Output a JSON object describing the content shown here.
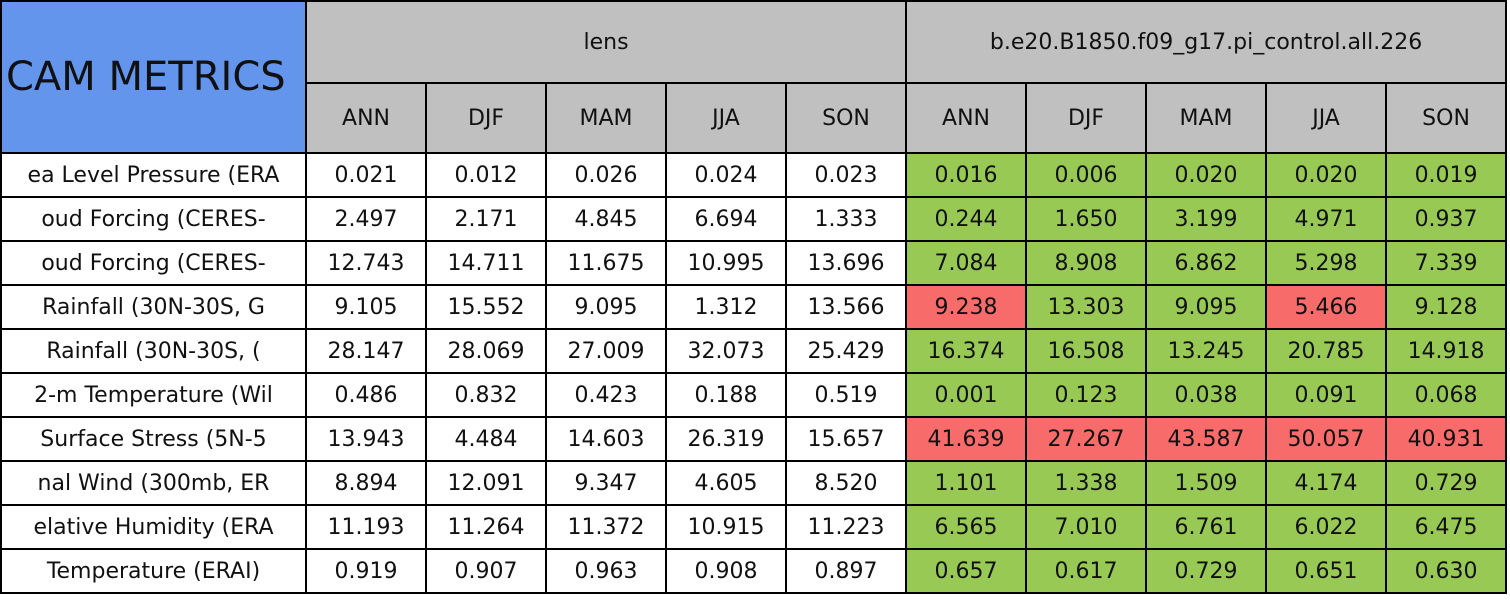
{
  "table": {
    "corner": "CAM METRICS",
    "groups": [
      "lens",
      "b.e20.B1850.f09_g17.pi_control.all.226"
    ],
    "seasons": [
      "ANN",
      "DJF",
      "MAM",
      "JJA",
      "SON"
    ],
    "colors": {
      "good": "#99c955",
      "bad": "#f86b6b"
    },
    "rows": [
      {
        "label": "ea Level Pressure (ERA",
        "lens": [
          "0.021",
          "0.012",
          "0.026",
          "0.024",
          "0.023"
        ],
        "control": [
          "0.016",
          "0.006",
          "0.020",
          "0.020",
          "0.019"
        ],
        "control_colors": [
          "good",
          "good",
          "good",
          "good",
          "good"
        ]
      },
      {
        "label": "oud Forcing (CERES-",
        "lens": [
          "2.497",
          "2.171",
          "4.845",
          "6.694",
          "1.333"
        ],
        "control": [
          "0.244",
          "1.650",
          "3.199",
          "4.971",
          "0.937"
        ],
        "control_colors": [
          "good",
          "good",
          "good",
          "good",
          "good"
        ]
      },
      {
        "label": "oud Forcing (CERES-",
        "lens": [
          "12.743",
          "14.711",
          "11.675",
          "10.995",
          "13.696"
        ],
        "control": [
          "7.084",
          "8.908",
          "6.862",
          "5.298",
          "7.339"
        ],
        "control_colors": [
          "good",
          "good",
          "good",
          "good",
          "good"
        ]
      },
      {
        "label": "Rainfall (30N-30S, G",
        "lens": [
          "9.105",
          "15.552",
          "9.095",
          "1.312",
          "13.566"
        ],
        "control": [
          "9.238",
          "13.303",
          "9.095",
          "5.466",
          "9.128"
        ],
        "control_colors": [
          "bad",
          "good",
          "good",
          "bad",
          "good"
        ]
      },
      {
        "label": "Rainfall (30N-30S, (",
        "lens": [
          "28.147",
          "28.069",
          "27.009",
          "32.073",
          "25.429"
        ],
        "control": [
          "16.374",
          "16.508",
          "13.245",
          "20.785",
          "14.918"
        ],
        "control_colors": [
          "good",
          "good",
          "good",
          "good",
          "good"
        ]
      },
      {
        "label": "2-m Temperature (Wil",
        "lens": [
          "0.486",
          "0.832",
          "0.423",
          "0.188",
          "0.519"
        ],
        "control": [
          "0.001",
          "0.123",
          "0.038",
          "0.091",
          "0.068"
        ],
        "control_colors": [
          "good",
          "good",
          "good",
          "good",
          "good"
        ]
      },
      {
        "label": "Surface Stress (5N-5",
        "lens": [
          "13.943",
          "4.484",
          "14.603",
          "26.319",
          "15.657"
        ],
        "control": [
          "41.639",
          "27.267",
          "43.587",
          "50.057",
          "40.931"
        ],
        "control_colors": [
          "bad",
          "bad",
          "bad",
          "bad",
          "bad"
        ]
      },
      {
        "label": "nal Wind (300mb, ER",
        "lens": [
          "8.894",
          "12.091",
          "9.347",
          "4.605",
          "8.520"
        ],
        "control": [
          "1.101",
          "1.338",
          "1.509",
          "4.174",
          "0.729"
        ],
        "control_colors": [
          "good",
          "good",
          "good",
          "good",
          "good"
        ]
      },
      {
        "label": "elative Humidity (ERA",
        "lens": [
          "11.193",
          "11.264",
          "11.372",
          "10.915",
          "11.223"
        ],
        "control": [
          "6.565",
          "7.010",
          "6.761",
          "6.022",
          "6.475"
        ],
        "control_colors": [
          "good",
          "good",
          "good",
          "good",
          "good"
        ]
      },
      {
        "label": "Temperature (ERAI)",
        "lens": [
          "0.919",
          "0.907",
          "0.963",
          "0.908",
          "0.897"
        ],
        "control": [
          "0.657",
          "0.617",
          "0.729",
          "0.651",
          "0.630"
        ],
        "control_colors": [
          "good",
          "good",
          "good",
          "good",
          "good"
        ]
      }
    ]
  }
}
